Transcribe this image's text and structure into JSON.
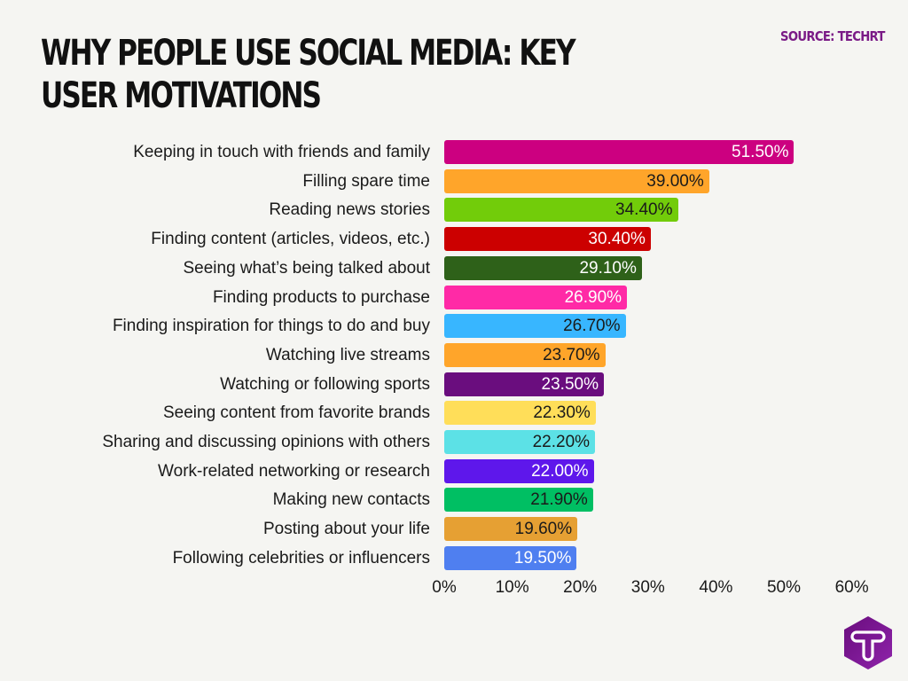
{
  "header": {
    "title": "WHY PEOPLE USE SOCIAL MEDIA: KEY USER MOTIVATIONS",
    "source": "SOURCE: TECHRT"
  },
  "logo": {
    "icon": "techrt-hexagon-t-logo",
    "color": "#7a1a86"
  },
  "chart_data": {
    "type": "bar",
    "orientation": "horizontal",
    "title": "WHY PEOPLE USE SOCIAL MEDIA: KEY USER MOTIVATIONS",
    "source": "SOURCE: TECHRT",
    "xlabel": "",
    "ylabel": "",
    "xlim": [
      0,
      60
    ],
    "grid": false,
    "legend": null,
    "ticks": [
      "0%",
      "10%",
      "20%",
      "30%",
      "40%",
      "50%",
      "60%"
    ],
    "categories": [
      "Keeping in touch with friends and family",
      "Filling spare time",
      "Reading news stories",
      "Finding content (articles, videos, etc.)",
      "Seeing what’s being talked about",
      "Finding products to purchase",
      "Finding inspiration for things to do and buy",
      "Watching live streams",
      "Watching or following sports",
      "Seeing content from favorite brands",
      "Sharing and discussing opinions with others",
      "Work-related networking or research",
      "Making new contacts",
      "Posting about your life",
      "Following celebrities or influencers"
    ],
    "values": [
      51.5,
      39.0,
      34.4,
      30.4,
      29.1,
      26.9,
      26.7,
      23.7,
      23.5,
      22.3,
      22.2,
      22.0,
      21.9,
      19.6,
      19.5
    ],
    "value_labels": [
      "51.50%",
      "39.00%",
      "34.40%",
      "30.40%",
      "29.10%",
      "26.90%",
      "26.70%",
      "23.70%",
      "23.50%",
      "22.30%",
      "22.20%",
      "22.00%",
      "21.90%",
      "19.60%",
      "19.50%"
    ],
    "colors": [
      "#cc0080",
      "#ffa52a",
      "#72cc0a",
      "#cc0000",
      "#2e6119",
      "#ff2aa6",
      "#38b6ff",
      "#ffa52a",
      "#6a0d7e",
      "#ffde59",
      "#5ce1e6",
      "#5e17eb",
      "#00bf63",
      "#e6a033",
      "#4f7ff0"
    ],
    "label_colors": [
      "#ffffff",
      "#1a1a1a",
      "#1a1a1a",
      "#ffffff",
      "#ffffff",
      "#ffffff",
      "#1a1a1a",
      "#1a1a1a",
      "#ffffff",
      "#1a1a1a",
      "#1a1a1a",
      "#ffffff",
      "#1a1a1a",
      "#1a1a1a",
      "#ffffff"
    ]
  }
}
